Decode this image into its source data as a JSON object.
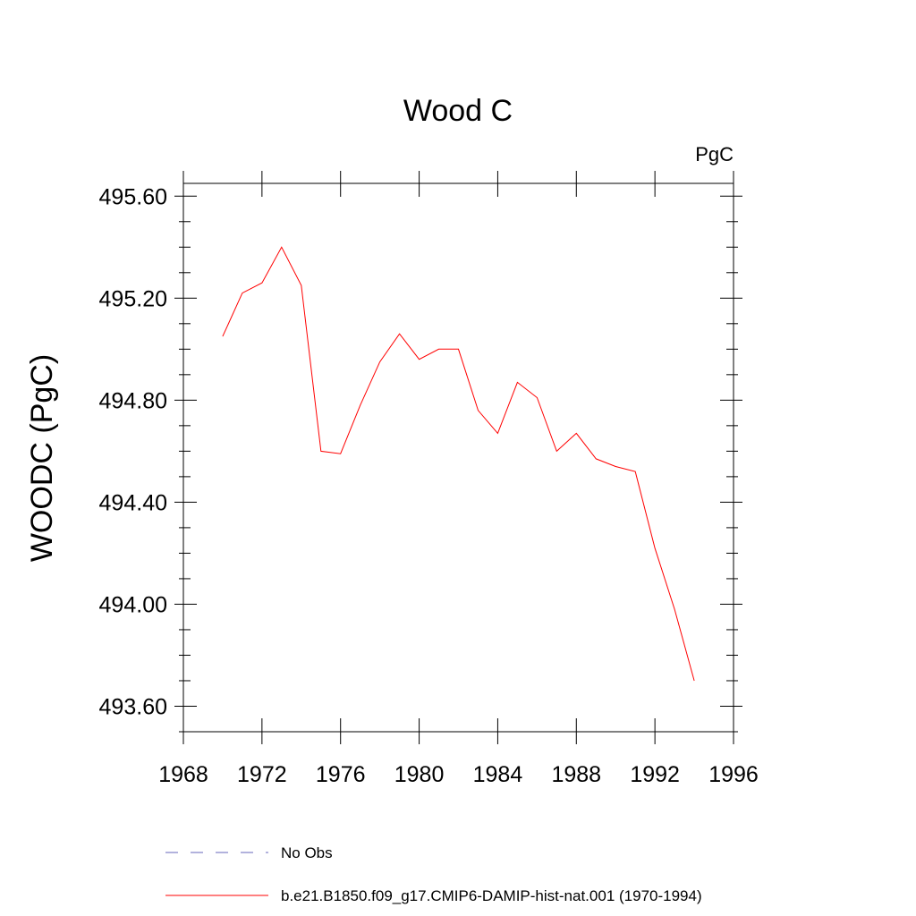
{
  "chart_data": {
    "type": "line",
    "title": "Wood C",
    "units_label": "PgC",
    "xlabel": "",
    "ylabel": "WOODC  (PgC)",
    "xlim": [
      1968,
      1996
    ],
    "ylim": [
      493.5,
      495.65
    ],
    "xticks": [
      1968,
      1972,
      1976,
      1980,
      1984,
      1988,
      1992,
      1996
    ],
    "xtick_labels": [
      "1968",
      "1972",
      "1976",
      "1980",
      "1984",
      "1988",
      "1992",
      "1996"
    ],
    "yticks": [
      493.6,
      494.0,
      494.4,
      494.8,
      495.2,
      495.6
    ],
    "ytick_labels": [
      "493.60",
      "494.00",
      "494.40",
      "494.80",
      "495.20",
      "495.60"
    ],
    "grid": false,
    "legend_position": "bottom",
    "series": [
      {
        "name": "b.e21.B1850.f09_g17.CMIP6-DAMIP-hist-nat.001 (1970-1994)",
        "color": "#ff0000",
        "style": "solid",
        "x": [
          1970,
          1971,
          1972,
          1973,
          1974,
          1975,
          1976,
          1977,
          1978,
          1979,
          1980,
          1981,
          1982,
          1983,
          1984,
          1985,
          1986,
          1987,
          1988,
          1989,
          1990,
          1991,
          1992,
          1993,
          1994
        ],
        "y": [
          495.05,
          495.22,
          495.26,
          495.4,
          495.25,
          494.6,
          494.59,
          494.78,
          494.95,
          495.06,
          494.96,
          495.0,
          495.0,
          494.76,
          494.67,
          494.87,
          494.81,
          494.6,
          494.67,
          494.57,
          494.54,
          494.52,
          494.22,
          493.98,
          493.7
        ]
      }
    ],
    "legend": [
      {
        "label": "No Obs",
        "color": "#6666bb",
        "style": "dashed"
      },
      {
        "label": "b.e21.B1850.f09_g17.CMIP6-DAMIP-hist-nat.001 (1970-1994)",
        "color": "#ff0000",
        "style": "solid"
      }
    ]
  }
}
